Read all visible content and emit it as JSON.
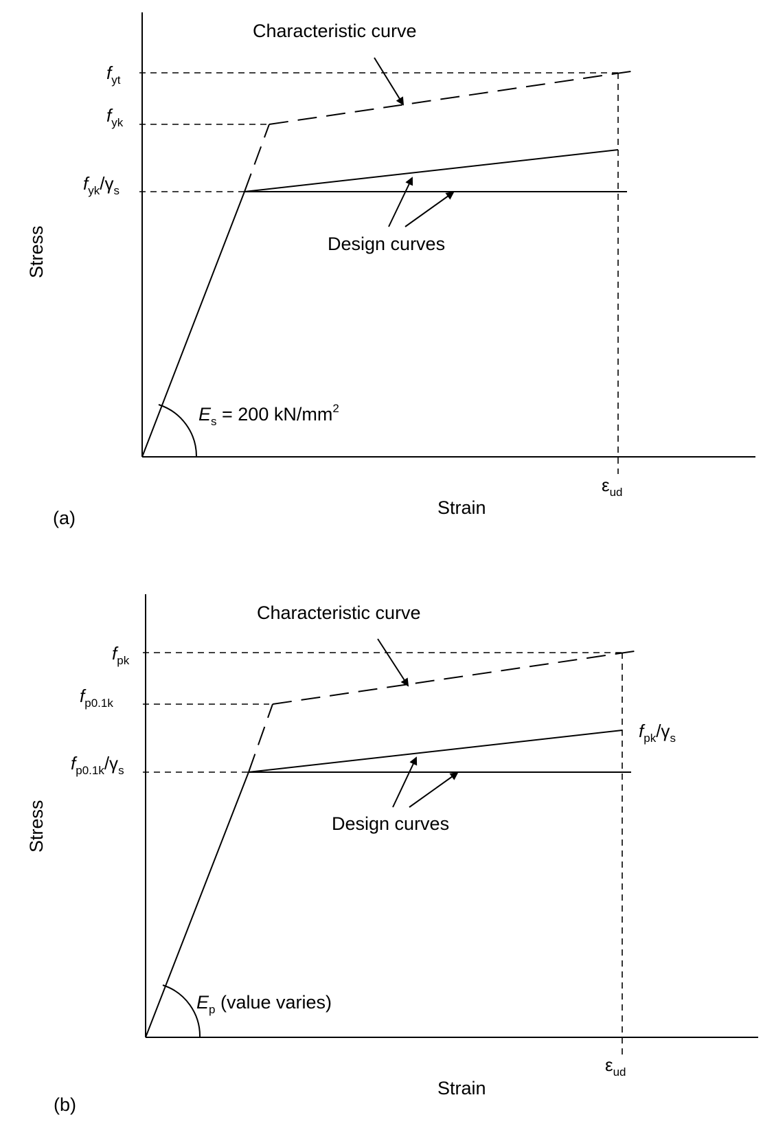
{
  "colors": {
    "ink": "#000000",
    "background": "#ffffff"
  },
  "panel_a": {
    "tag": "(a)",
    "y_label": "Stress",
    "x_label": "Strain",
    "char_curve_label": "Characteristic curve",
    "design_curves_label": "Design curves",
    "y_levels": {
      "fyt": {
        "main": "f",
        "sub": "yt"
      },
      "fyk": {
        "main": "f",
        "sub": "yk"
      },
      "fyk_gs": {
        "main": "f",
        "sub": "yk",
        "slash": "/γ",
        "sub2": "s"
      }
    },
    "strain_mark": {
      "main": "ε",
      "sub": "ud"
    },
    "modulus": {
      "main": "E",
      "sub": "s",
      "rest": " = 200 kN/mm",
      "sup": "2"
    }
  },
  "panel_b": {
    "tag": "(b)",
    "y_label": "Stress",
    "x_label": "Strain",
    "char_curve_label": "Characteristic curve",
    "design_curves_label": "Design curves",
    "y_levels": {
      "fpk": {
        "main": "f",
        "sub": "pk"
      },
      "fp01k": {
        "main": "f",
        "sub": "p0.1k"
      },
      "fp01k_gs": {
        "main": "f",
        "sub": "p0.1k",
        "slash": "/γ",
        "sub2": "s"
      }
    },
    "right_label": {
      "main": "f",
      "sub": "pk",
      "slash": "/γ",
      "sub2": "s"
    },
    "strain_mark": {
      "main": "ε",
      "sub": "ud"
    },
    "modulus": {
      "main": "E",
      "sub": "p",
      "rest": " (value varies)"
    }
  }
}
